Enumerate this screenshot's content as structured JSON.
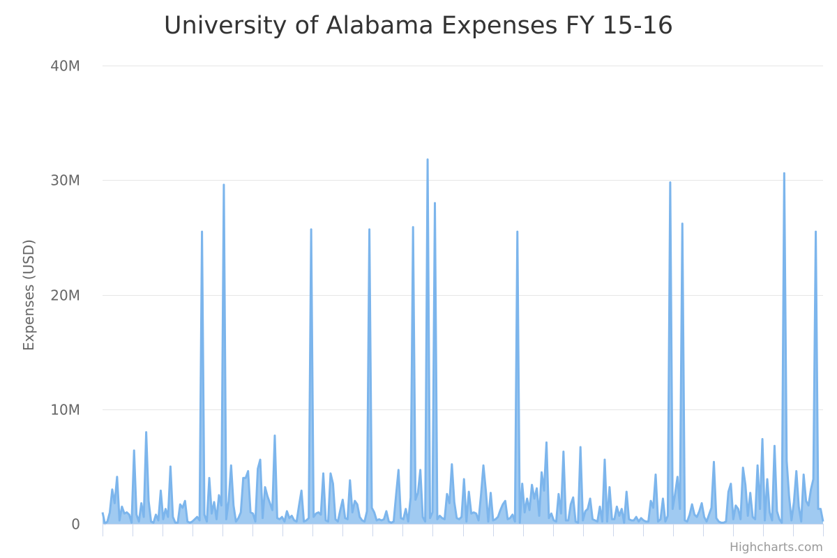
{
  "credits": "Highcharts.com",
  "colors": {
    "series": "#7cb5ec",
    "grid": "#e6e6e6",
    "axis": "#ccd6eb"
  },
  "chart_data": {
    "type": "area",
    "title": "University of Alabama Expenses FY 15-16",
    "ylabel": "Expenses (USD)",
    "xlabel": "",
    "ylim": [
      0,
      40000000
    ],
    "yticks": [
      0,
      10000000,
      20000000,
      30000000,
      40000000
    ],
    "ytick_labels": [
      "0",
      "10M",
      "20M",
      "30M",
      "40M"
    ],
    "grid": true,
    "legend": "none",
    "x_tick_count": 25,
    "values": [
      1000000,
      0,
      200000,
      1000000,
      3000000,
      1800000,
      4100000,
      300000,
      1500000,
      900000,
      1000000,
      800000,
      100000,
      6400000,
      800000,
      200000,
      1800000,
      600000,
      8000000,
      2000000,
      200000,
      100000,
      800000,
      300000,
      2900000,
      400000,
      1300000,
      600000,
      5000000,
      600000,
      100000,
      100000,
      1700000,
      1400000,
      2000000,
      200000,
      100000,
      200000,
      400000,
      600000,
      300000,
      25500000,
      800000,
      200000,
      4000000,
      900000,
      1900000,
      400000,
      2500000,
      1600000,
      29600000,
      400000,
      2000000,
      5100000,
      1600000,
      200000,
      500000,
      1000000,
      4000000,
      4000000,
      4600000,
      1000000,
      900000,
      200000,
      4800000,
      5600000,
      500000,
      3200000,
      2400000,
      1800000,
      1200000,
      7700000,
      500000,
      400000,
      600000,
      200000,
      1100000,
      500000,
      700000,
      300000,
      200000,
      1600000,
      2900000,
      200000,
      300000,
      500000,
      25700000,
      600000,
      900000,
      1000000,
      800000,
      4400000,
      300000,
      200000,
      4400000,
      3500000,
      400000,
      200000,
      1200000,
      2100000,
      500000,
      400000,
      3800000,
      1000000,
      2000000,
      1700000,
      600000,
      300000,
      200000,
      1100000,
      25700000,
      1400000,
      1000000,
      300000,
      400000,
      300000,
      400000,
      1100000,
      200000,
      100000,
      200000,
      2500000,
      4700000,
      500000,
      400000,
      1300000,
      200000,
      2300000,
      25900000,
      2100000,
      2700000,
      4700000,
      600000,
      200000,
      31800000,
      500000,
      1000000,
      28000000,
      400000,
      700000,
      500000,
      400000,
      2600000,
      1800000,
      5200000,
      1900000,
      500000,
      400000,
      600000,
      3900000,
      200000,
      2800000,
      900000,
      1000000,
      900000,
      300000,
      2500000,
      5100000,
      2900000,
      200000,
      2700000,
      300000,
      400000,
      600000,
      1200000,
      1700000,
      2000000,
      400000,
      500000,
      800000,
      200000,
      25500000,
      100000,
      3500000,
      1000000,
      2200000,
      1200000,
      3400000,
      2200000,
      3100000,
      700000,
      4500000,
      2900000,
      7100000,
      500000,
      900000,
      300000,
      200000,
      2600000,
      900000,
      6300000,
      300000,
      300000,
      1700000,
      2300000,
      200000,
      100000,
      6700000,
      300000,
      1100000,
      1300000,
      2200000,
      400000,
      300000,
      200000,
      1500000,
      200000,
      5600000,
      200000,
      3200000,
      400000,
      400000,
      1500000,
      700000,
      1300000,
      100000,
      2800000,
      400000,
      300000,
      300000,
      600000,
      200000,
      500000,
      300000,
      200000,
      200000,
      2000000,
      1400000,
      4300000,
      200000,
      400000,
      2200000,
      200000,
      700000,
      29800000,
      1300000,
      2600000,
      4100000,
      1300000,
      26200000,
      300000,
      200000,
      800000,
      1700000,
      800000,
      600000,
      1100000,
      1800000,
      600000,
      200000,
      800000,
      1400000,
      5400000,
      500000,
      200000,
      100000,
      100000,
      200000,
      2800000,
      3500000,
      400000,
      1600000,
      1300000,
      400000,
      4900000,
      3400000,
      700000,
      2700000,
      600000,
      400000,
      5100000,
      1300000,
      7400000,
      300000,
      3900000,
      1000000,
      300000,
      6800000,
      1100000,
      400000,
      100000,
      30600000,
      5500000,
      2400000,
      300000,
      1900000,
      4600000,
      1500000,
      200000,
      4300000,
      2000000,
      1600000,
      3000000,
      3900000,
      25500000,
      1300000,
      1300000,
      200000
    ]
  }
}
